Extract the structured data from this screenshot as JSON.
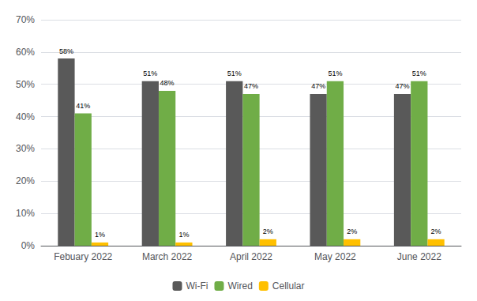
{
  "chart_data": {
    "type": "bar",
    "categories": [
      "Febuary 2022",
      "March 2022",
      "April 2022",
      "May 2022",
      "June 2022"
    ],
    "series": [
      {
        "name": "Wi-Fi",
        "color": "#595959",
        "values": [
          58,
          51,
          51,
          47,
          47
        ],
        "value_labels": [
          "58%",
          "51%",
          "51%",
          "47%",
          "47%"
        ]
      },
      {
        "name": "Wired",
        "color": "#70AD47",
        "values": [
          41,
          48,
          47,
          51,
          51
        ],
        "value_labels": [
          "41%",
          "48%",
          "47%",
          "51%",
          "51%"
        ]
      },
      {
        "name": "Cellular",
        "color": "#FFC000",
        "values": [
          1,
          1,
          2,
          2,
          2
        ],
        "value_labels": [
          "1%",
          "1%",
          "2%",
          "2%",
          "2%"
        ]
      }
    ],
    "ylim": [
      0,
      70
    ],
    "yticks": [
      {
        "value": 0,
        "label": "0%"
      },
      {
        "value": 10,
        "label": "10%"
      },
      {
        "value": 20,
        "label": "20%"
      },
      {
        "value": 30,
        "label": "30%"
      },
      {
        "value": 40,
        "label": "40%"
      },
      {
        "value": 50,
        "label": "50%"
      },
      {
        "value": 60,
        "label": "60%"
      },
      {
        "value": 70,
        "label": "70%"
      }
    ],
    "grid": true,
    "data_labels": true,
    "legend": "bottom"
  }
}
